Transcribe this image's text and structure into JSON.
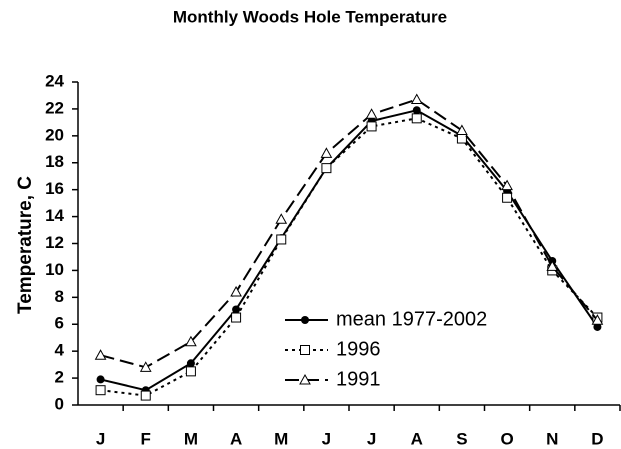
{
  "chart_data": {
    "type": "line",
    "title": "Monthly Woods Hole Temperature",
    "y_label": "Temperature, C",
    "categories": [
      "J",
      "F",
      "M",
      "A",
      "M",
      "J",
      "J",
      "A",
      "S",
      "O",
      "N",
      "D"
    ],
    "series": [
      {
        "name": "mean 1977-2002",
        "color": "#000000",
        "marker": "circle",
        "dash": "solid",
        "values": [
          1.9,
          1.1,
          3.1,
          7.1,
          12.4,
          17.6,
          21.1,
          21.9,
          20.0,
          15.9,
          10.7,
          5.8
        ]
      },
      {
        "name": "1996",
        "color": "#000000",
        "marker": "square",
        "dash": "dotted",
        "values": [
          1.1,
          0.7,
          2.5,
          6.5,
          12.3,
          17.6,
          20.7,
          21.3,
          19.8,
          15.4,
          10.0,
          6.5
        ]
      },
      {
        "name": "1991",
        "color": "#000000",
        "marker": "triangle",
        "dash": "dashed",
        "values": [
          3.7,
          2.8,
          4.7,
          8.4,
          13.8,
          18.7,
          21.6,
          22.7,
          20.4,
          16.3,
          10.3,
          6.3
        ]
      }
    ],
    "ylim": [
      0,
      24
    ],
    "yticks": [
      0,
      2,
      4,
      6,
      8,
      10,
      12,
      14,
      16,
      18,
      20,
      22,
      24
    ],
    "grid": false
  }
}
